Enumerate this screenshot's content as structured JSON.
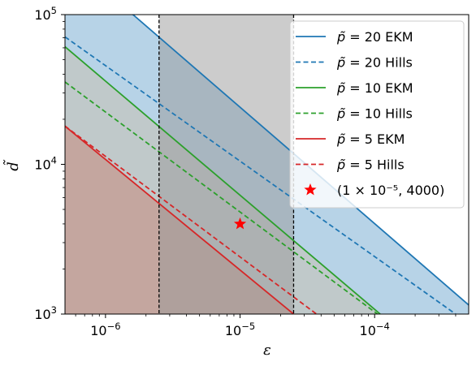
{
  "chart_data": {
    "type": "line",
    "xlabel": "ε",
    "ylabel": "d̃",
    "xscale": "log",
    "yscale": "log",
    "xlim": [
      5e-07,
      0.0005
    ],
    "ylim": [
      1000,
      100000
    ],
    "x_ticks": [
      {
        "value": 1e-06,
        "base": "10",
        "exp": "−6"
      },
      {
        "value": 1e-05,
        "base": "10",
        "exp": "−5"
      },
      {
        "value": 0.0001,
        "base": "10",
        "exp": "−4"
      }
    ],
    "y_ticks": [
      {
        "value": 1000,
        "base": "10",
        "exp": "3"
      },
      {
        "value": 10000,
        "base": "10",
        "exp": "4"
      },
      {
        "value": 100000,
        "base": "10",
        "exp": "5"
      }
    ],
    "vertical_lines": [
      2.5e-06,
      2.5e-05
    ],
    "shaded_x_band": {
      "from": 2.5e-06,
      "to": 2.5e-05,
      "color": "#999999"
    },
    "series": [
      {
        "name": "p̃ = 20 EKM",
        "color": "#1f77b4",
        "dash": "solid",
        "fill": true,
        "fill_color": "#1f77b4",
        "points": [
          [
            5e-07,
            162000
          ],
          [
            1.6e-06,
            100000
          ],
          [
            0.0005,
            1150
          ]
        ]
      },
      {
        "name": "p̃ = 20 Hills",
        "color": "#1f77b4",
        "dash": "dashed",
        "fill": false,
        "points": [
          [
            5e-07,
            71000
          ],
          [
            0.0004,
            1000
          ]
        ]
      },
      {
        "name": "p̃ = 10 EKM",
        "color": "#2ca02c",
        "dash": "solid",
        "fill": true,
        "fill_color": "#d2b48c",
        "points": [
          [
            5e-07,
            61000
          ],
          [
            0.00011,
            1000
          ]
        ]
      },
      {
        "name": "p̃ = 10 Hills",
        "color": "#2ca02c",
        "dash": "dashed",
        "fill": false,
        "points": [
          [
            5e-07,
            35500
          ],
          [
            0.000105,
            1000
          ]
        ]
      },
      {
        "name": "p̃ = 5 EKM",
        "color": "#d62728",
        "dash": "solid",
        "fill": true,
        "fill_color": "#cd5c45",
        "points": [
          [
            5e-07,
            18000
          ],
          [
            2.5e-05,
            1000
          ]
        ]
      },
      {
        "name": "p̃ = 5 Hills",
        "color": "#d62728",
        "dash": "dashed",
        "fill": false,
        "points": [
          [
            5e-07,
            18000
          ],
          [
            3.7e-05,
            1000
          ]
        ]
      }
    ],
    "marker": {
      "name": "(1 × 10⁻⁵, 4000)",
      "x": 1e-05,
      "y": 4000,
      "symbol": "star",
      "color": "#ff0000"
    },
    "legend": {
      "placement": "top-right",
      "entries": [
        {
          "math": "p̃",
          "text": " = 20 EKM"
        },
        {
          "math": "p̃",
          "text": " = 20 Hills"
        },
        {
          "math": "p̃",
          "text": " = 10 EKM"
        },
        {
          "math": "p̃",
          "text": " = 10 Hills"
        },
        {
          "math": "p̃",
          "text": " = 5 EKM"
        },
        {
          "math": "p̃",
          "text": " = 5 Hills"
        },
        {
          "math": "",
          "text": "(1 × 10⁻⁵, 4000)"
        }
      ]
    },
    "grid": false
  }
}
